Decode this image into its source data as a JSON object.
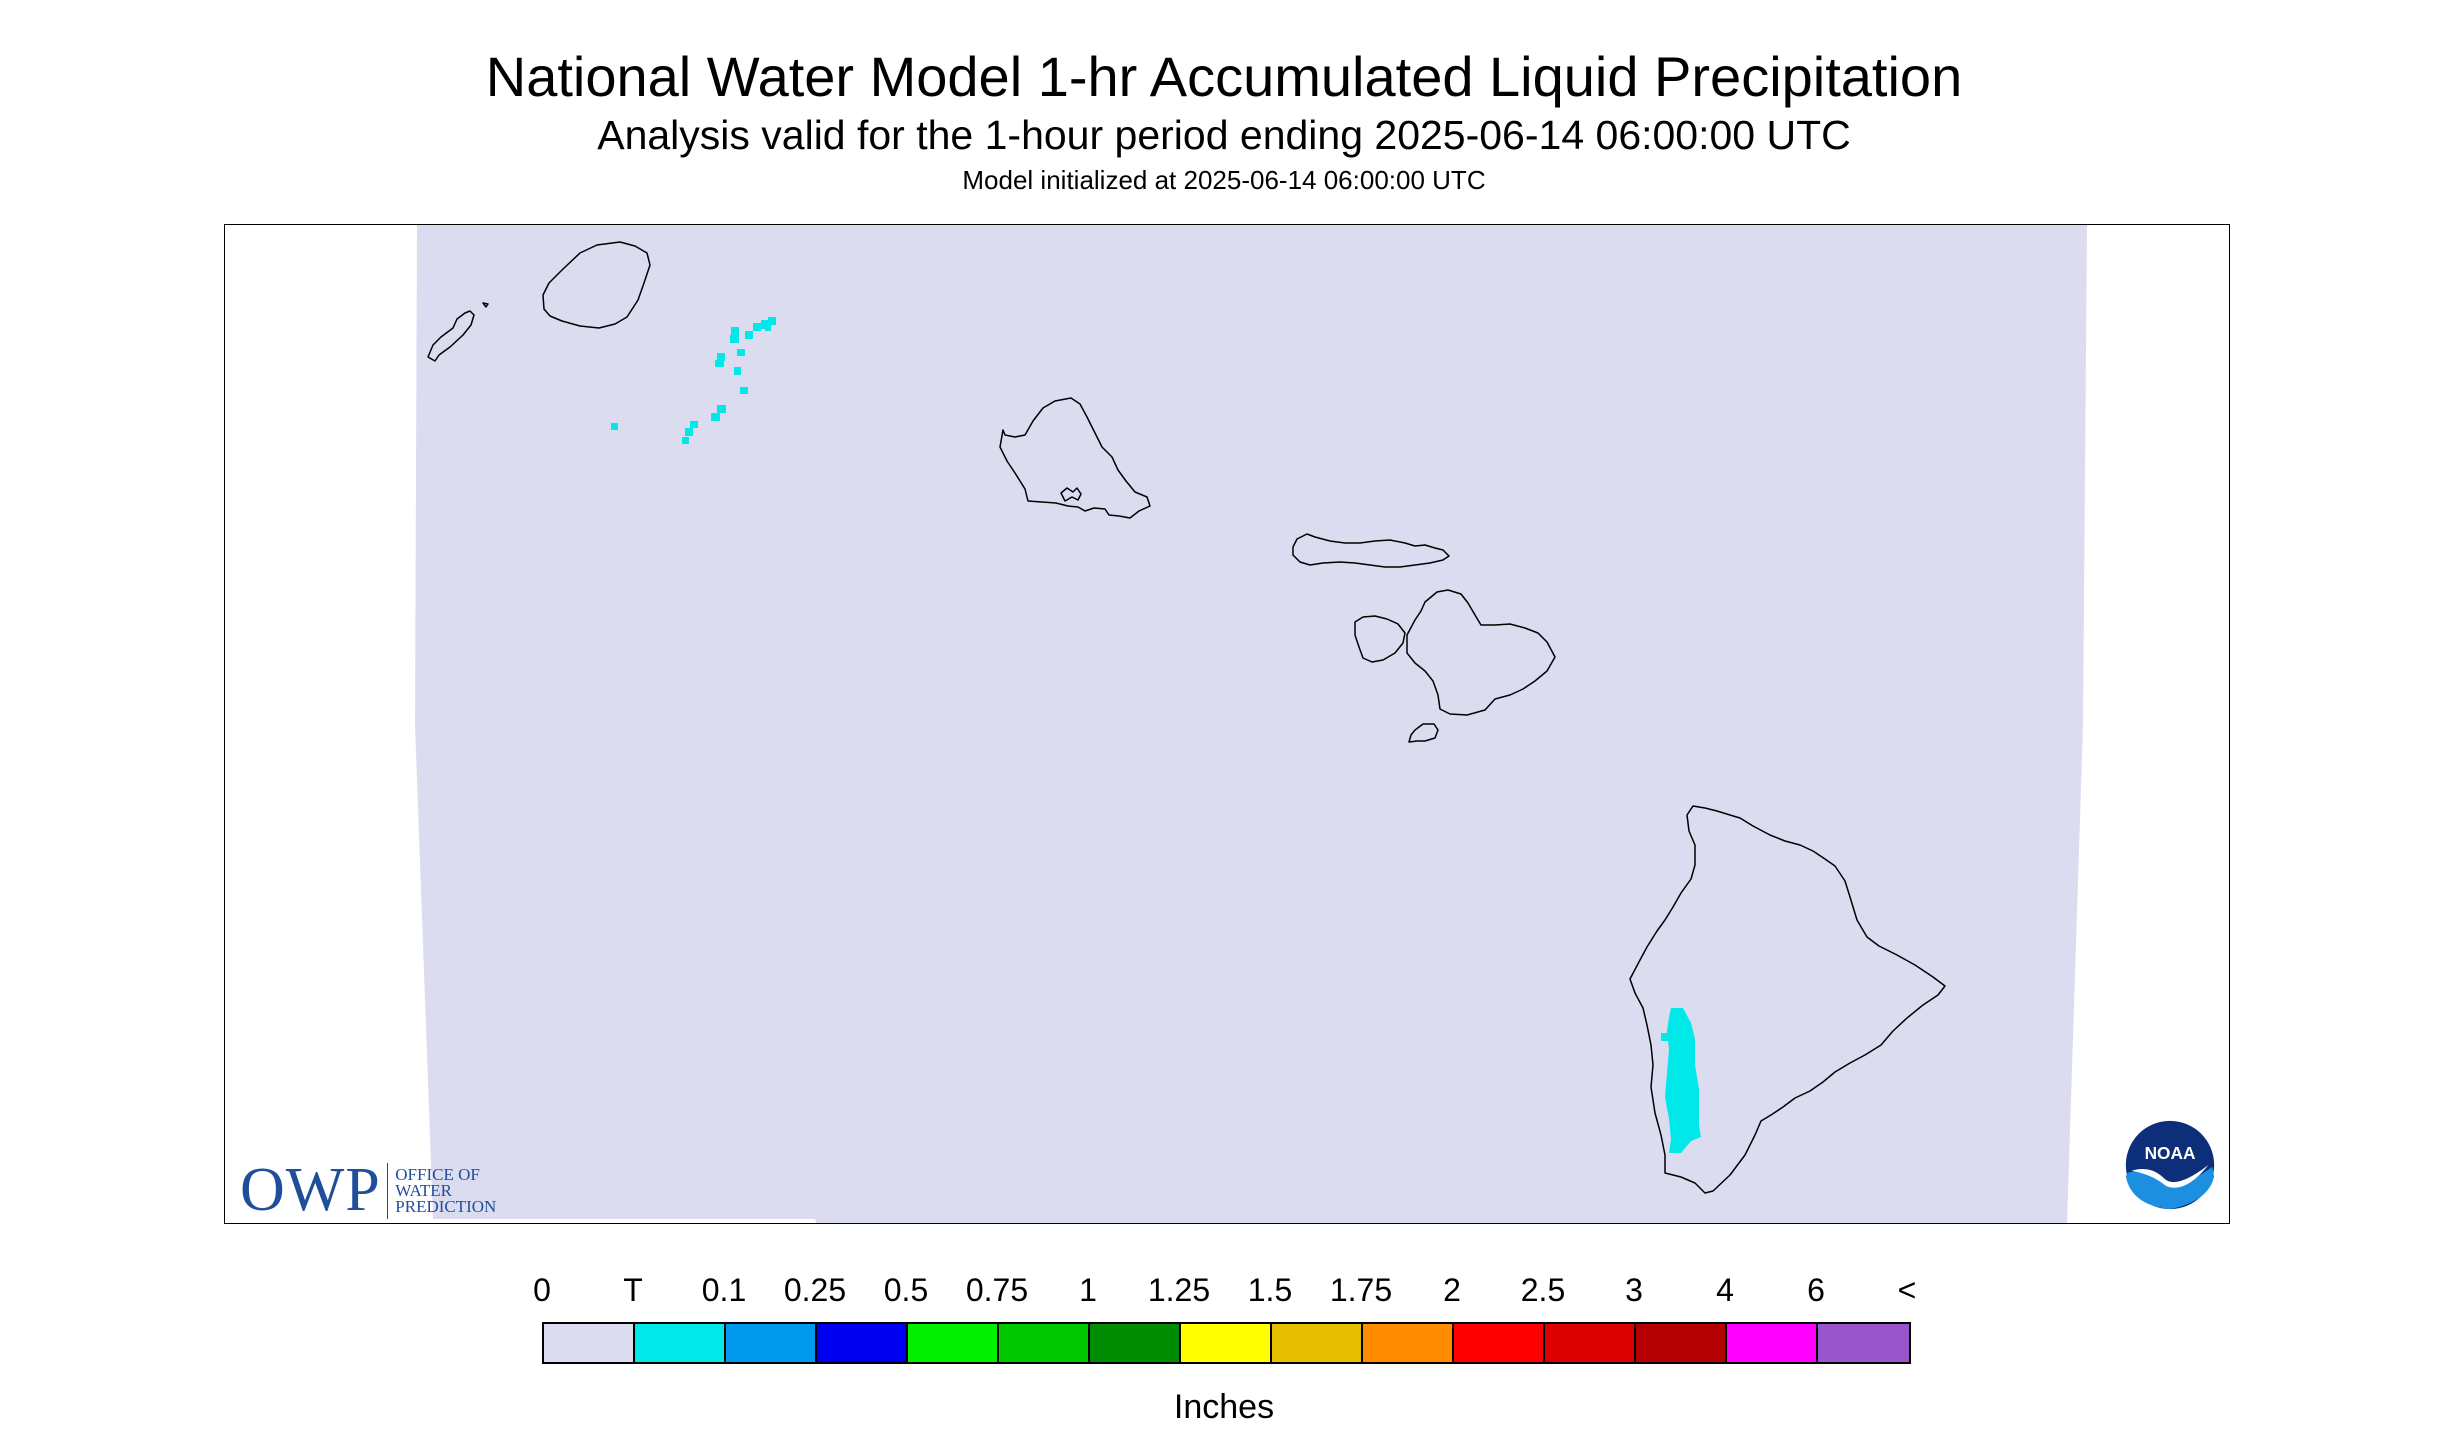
{
  "title": "National Water Model 1-hr Accumulated Liquid Precipitation",
  "subtitle": "Analysis valid for the 1-hour period ending 2025-06-14 06:00:00 UTC",
  "init_line": "Model initialized at 2025-06-14 06:00:00 UTC",
  "logos": {
    "owp_letters": "OWP",
    "owp_line1": "OFFICE OF",
    "owp_line2": "WATER",
    "owp_line3": "PREDICTION",
    "noaa": "NOAA"
  },
  "legend": {
    "labels": [
      "0",
      "T",
      "0.1",
      "0.25",
      "0.5",
      "0.75",
      "1",
      "1.25",
      "1.5",
      "1.75",
      "2",
      "2.5",
      "3",
      "4",
      "6",
      "<"
    ],
    "colors": [
      "#dcdcf0",
      "#00e8e8",
      "#0099ee",
      "#0000f0",
      "#00f000",
      "#00c800",
      "#008c00",
      "#ffff00",
      "#e6be00",
      "#ff8c00",
      "#ff0000",
      "#dc0000",
      "#b40000",
      "#ff00ff",
      "#9955cc"
    ],
    "unit": "Inches"
  },
  "map": {
    "region": "Hawaii",
    "background_color": "#dcdcf0",
    "precip_color": "#00e8e8",
    "coast_color": "#000000",
    "precip_class": "T"
  }
}
